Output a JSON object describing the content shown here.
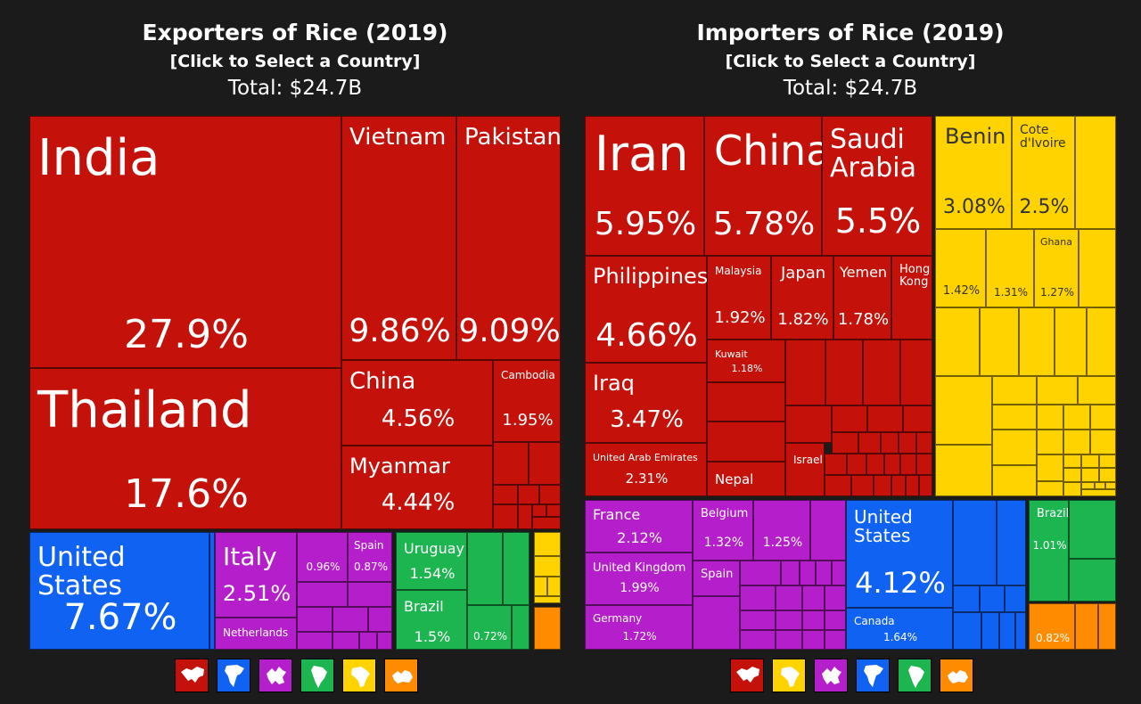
{
  "left": {
    "title": "Exporters of Rice (2019)",
    "subtitle": "[Click to Select a Country]",
    "total": "Total: $24.7B"
  },
  "right": {
    "title": "Importers of Rice (2019)",
    "subtitle": "[Click to Select a Country]",
    "total": "Total: $24.7B"
  },
  "colors": {
    "asia": "#c4120a",
    "north_america": "#0f62f2",
    "europe": "#b51ecb",
    "south_america": "#1db550",
    "africa": "#ffd300",
    "oceania": "#ff8c00"
  },
  "chart_data": [
    {
      "type": "treemap",
      "title": "Exporters of Rice (2019)",
      "total": "$24.7B",
      "unit": "% share of total",
      "items": [
        {
          "name": "India",
          "share": 27.9,
          "label": "27.9%",
          "region": "asia"
        },
        {
          "name": "Thailand",
          "share": 17.6,
          "label": "17.6%",
          "region": "asia"
        },
        {
          "name": "Vietnam",
          "share": 9.86,
          "label": "9.86%",
          "region": "asia"
        },
        {
          "name": "Pakistan",
          "share": 9.09,
          "label": "9.09%",
          "region": "asia"
        },
        {
          "name": "China",
          "share": 4.56,
          "label": "4.56%",
          "region": "asia"
        },
        {
          "name": "Myanmar",
          "share": 4.44,
          "label": "4.44%",
          "region": "asia"
        },
        {
          "name": "Cambodia",
          "share": 1.95,
          "label": "1.95%",
          "region": "asia"
        },
        {
          "name": "United States",
          "share": 7.67,
          "label": "7.67%",
          "region": "north_america"
        },
        {
          "name": "Italy",
          "share": 2.51,
          "label": "2.51%",
          "region": "europe"
        },
        {
          "name": "",
          "share": 0.96,
          "label": "0.96%",
          "region": "europe"
        },
        {
          "name": "Spain",
          "share": 0.87,
          "label": "0.87%",
          "region": "europe"
        },
        {
          "name": "Netherlands",
          "share": null,
          "label": "",
          "region": "europe"
        },
        {
          "name": "Uruguay",
          "share": 1.54,
          "label": "1.54%",
          "region": "south_america"
        },
        {
          "name": "Brazil",
          "share": 1.5,
          "label": "1.5%",
          "region": "south_america"
        },
        {
          "name": "",
          "share": 0.72,
          "label": "0.72%",
          "region": "south_america"
        }
      ]
    },
    {
      "type": "treemap",
      "title": "Importers of Rice (2019)",
      "total": "$24.7B",
      "unit": "% share of total",
      "items": [
        {
          "name": "Iran",
          "share": 5.95,
          "label": "5.95%",
          "region": "asia"
        },
        {
          "name": "China",
          "share": 5.78,
          "label": "5.78%",
          "region": "asia"
        },
        {
          "name": "Saudi Arabia",
          "share": 5.5,
          "label": "5.5%",
          "region": "asia"
        },
        {
          "name": "Philippines",
          "share": 4.66,
          "label": "4.66%",
          "region": "asia"
        },
        {
          "name": "Malaysia",
          "share": 1.92,
          "label": "1.92%",
          "region": "asia"
        },
        {
          "name": "Japan",
          "share": 1.82,
          "label": "1.82%",
          "region": "asia"
        },
        {
          "name": "Yemen",
          "share": 1.78,
          "label": "1.78%",
          "region": "asia"
        },
        {
          "name": "Hong Kong",
          "share": null,
          "label": "",
          "region": "asia"
        },
        {
          "name": "Kuwait",
          "share": 1.18,
          "label": "1.18%",
          "region": "asia"
        },
        {
          "name": "Iraq",
          "share": 3.47,
          "label": "3.47%",
          "region": "asia"
        },
        {
          "name": "United Arab Emirates",
          "share": 2.31,
          "label": "2.31%",
          "region": "asia"
        },
        {
          "name": "Nepal",
          "share": null,
          "label": "",
          "region": "asia"
        },
        {
          "name": "Israel",
          "share": null,
          "label": "",
          "region": "asia"
        },
        {
          "name": "Benin",
          "share": 3.08,
          "label": "3.08%",
          "region": "africa"
        },
        {
          "name": "Cote d'Ivoire",
          "share": 2.5,
          "label": "2.5%",
          "region": "africa"
        },
        {
          "name": "",
          "share": 1.42,
          "label": "1.42%",
          "region": "africa"
        },
        {
          "name": "",
          "share": 1.31,
          "label": "1.31%",
          "region": "africa"
        },
        {
          "name": "Ghana",
          "share": 1.27,
          "label": "1.27%",
          "region": "africa"
        },
        {
          "name": "France",
          "share": 2.12,
          "label": "2.12%",
          "region": "europe"
        },
        {
          "name": "United Kingdom",
          "share": 1.99,
          "label": "1.99%",
          "region": "europe"
        },
        {
          "name": "Germany",
          "share": 1.72,
          "label": "1.72%",
          "region": "europe"
        },
        {
          "name": "Belgium",
          "share": 1.32,
          "label": "1.32%",
          "region": "europe"
        },
        {
          "name": "",
          "share": 1.25,
          "label": "1.25%",
          "region": "europe"
        },
        {
          "name": "Spain",
          "share": null,
          "label": "",
          "region": "europe"
        },
        {
          "name": "United States",
          "share": 4.12,
          "label": "4.12%",
          "region": "north_america"
        },
        {
          "name": "Canada",
          "share": 1.64,
          "label": "1.64%",
          "region": "north_america"
        },
        {
          "name": "Brazil",
          "share": 1.01,
          "label": "1.01%",
          "region": "south_america"
        },
        {
          "name": "",
          "share": 0.82,
          "label": "0.82%",
          "region": "oceania"
        }
      ]
    }
  ],
  "legend_left": [
    {
      "icon": "asia-icon",
      "region": "asia"
    },
    {
      "icon": "north-america-icon",
      "region": "north_america"
    },
    {
      "icon": "europe-icon",
      "region": "europe"
    },
    {
      "icon": "south-america-icon",
      "region": "south_america"
    },
    {
      "icon": "africa-icon",
      "region": "africa"
    },
    {
      "icon": "oceania-icon",
      "region": "oceania"
    }
  ],
  "legend_right": [
    {
      "icon": "asia-icon",
      "region": "asia"
    },
    {
      "icon": "africa-icon",
      "region": "africa"
    },
    {
      "icon": "europe-icon",
      "region": "europe"
    },
    {
      "icon": "north-america-icon",
      "region": "north_america"
    },
    {
      "icon": "south-america-icon",
      "region": "south_america"
    },
    {
      "icon": "oceania-icon",
      "region": "oceania"
    }
  ]
}
